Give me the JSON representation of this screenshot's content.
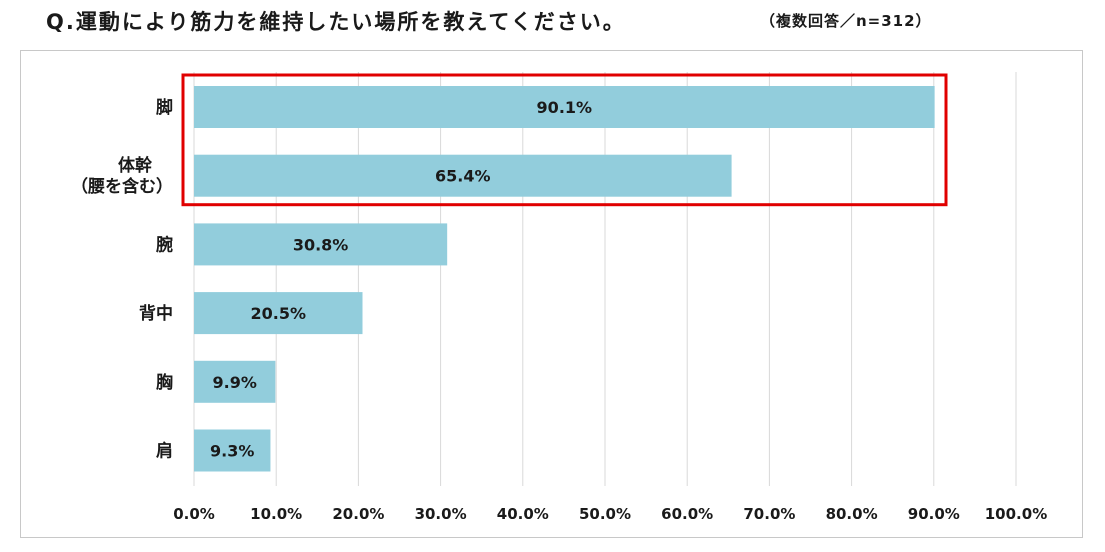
{
  "title": "Q.運動により筋力を維持したい場所を教えてください。",
  "note": "（複数回答／n=312）",
  "colors": {
    "bar": "#92cddc",
    "highlight": "#e00000",
    "grid": "#d9d9d9"
  },
  "chart_data": {
    "type": "bar",
    "orientation": "horizontal",
    "categories": [
      "脚",
      "体幹\n（腰を含む）",
      "腕",
      "背中",
      "胸",
      "肩"
    ],
    "values": [
      90.1,
      65.4,
      30.8,
      20.5,
      9.9,
      9.3
    ],
    "value_labels": [
      "90.1%",
      "65.4%",
      "30.8%",
      "20.5%",
      "9.9%",
      "9.3%"
    ],
    "xlim": [
      0,
      100
    ],
    "xticks": [
      0,
      10,
      20,
      30,
      40,
      50,
      60,
      70,
      80,
      90,
      100
    ],
    "xtick_labels": [
      "0.0%",
      "10.0%",
      "20.0%",
      "30.0%",
      "40.0%",
      "50.0%",
      "60.0%",
      "70.0%",
      "80.0%",
      "90.0%",
      "100.0%"
    ],
    "grid": true,
    "highlighted_categories": [
      "脚",
      "体幹\n（腰を含む）"
    ]
  }
}
